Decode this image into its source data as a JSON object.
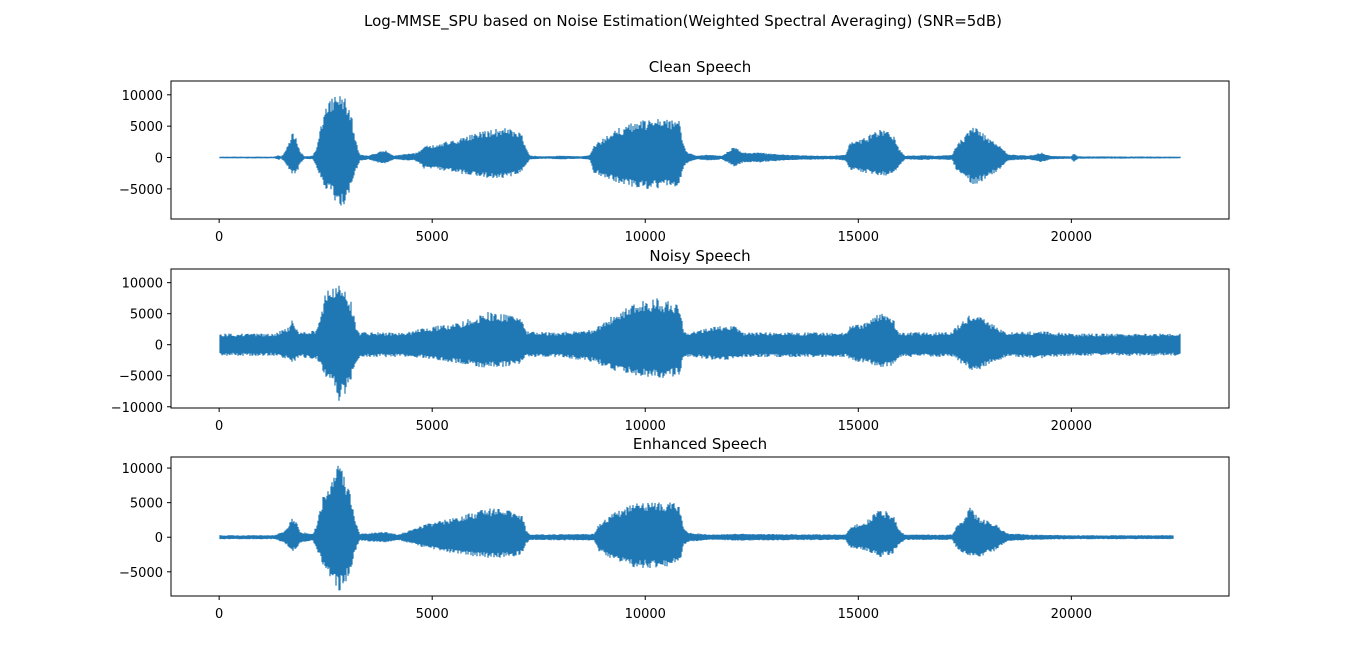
{
  "figure": {
    "suptitle": "Log-MMSE_SPU based on Noise Estimation(Weighted Spectral Averaging) (SNR=5dB)"
  },
  "colors": {
    "series": "#1f77b4",
    "axes": "#000000",
    "background": "#ffffff"
  },
  "chart_data": [
    {
      "type": "line",
      "title": "Clean Speech",
      "xlabel": "",
      "ylabel": "",
      "xlim": [
        -1130,
        23700
      ],
      "ylim": [
        -9800,
        12200
      ],
      "xticks": [
        0,
        5000,
        10000,
        15000,
        20000
      ],
      "yticks": [
        -5000,
        0,
        5000,
        10000
      ],
      "grid": false,
      "x_range": [
        0,
        22560
      ],
      "baseline_noise": 150,
      "envelope": [
        [
          0,
          150,
          -150
        ],
        [
          1300,
          150,
          -150
        ],
        [
          1400,
          400,
          -400
        ],
        [
          1450,
          150,
          -150
        ],
        [
          1500,
          500,
          -500
        ],
        [
          1650,
          2500,
          -2000
        ],
        [
          1700,
          4000,
          -2500
        ],
        [
          1800,
          3500,
          -3000
        ],
        [
          1900,
          1000,
          -1000
        ],
        [
          2000,
          200,
          -200
        ],
        [
          2200,
          300,
          -300
        ],
        [
          2300,
          2000,
          -2000
        ],
        [
          2400,
          5500,
          -3500
        ],
        [
          2500,
          8000,
          -5000
        ],
        [
          2700,
          10000,
          -6500
        ],
        [
          2800,
          11000,
          -8500
        ],
        [
          2950,
          9500,
          -7500
        ],
        [
          3100,
          7000,
          -5000
        ],
        [
          3200,
          3000,
          -2500
        ],
        [
          3300,
          500,
          -600
        ],
        [
          3500,
          300,
          -300
        ],
        [
          3700,
          800,
          -800
        ],
        [
          3900,
          1200,
          -1000
        ],
        [
          4100,
          300,
          -300
        ],
        [
          4400,
          600,
          -500
        ],
        [
          4600,
          700,
          -500
        ],
        [
          4750,
          1200,
          -1200
        ],
        [
          4800,
          2000,
          -1800
        ],
        [
          5000,
          2000,
          -1800
        ],
        [
          5600,
          3000,
          -2500
        ],
        [
          6300,
          4500,
          -3300
        ],
        [
          6800,
          4800,
          -3300
        ],
        [
          7100,
          4300,
          -2500
        ],
        [
          7200,
          1500,
          -1200
        ],
        [
          7300,
          300,
          -300
        ],
        [
          7700,
          200,
          -200
        ],
        [
          8000,
          300,
          -300
        ],
        [
          8500,
          200,
          -200
        ],
        [
          8700,
          400,
          -400
        ],
        [
          8800,
          2000,
          -2500
        ],
        [
          9300,
          4500,
          -4000
        ],
        [
          9800,
          5800,
          -5000
        ],
        [
          10300,
          6200,
          -5000
        ],
        [
          10800,
          6000,
          -4500
        ],
        [
          10900,
          2000,
          -1500
        ],
        [
          11000,
          800,
          -800
        ],
        [
          11200,
          300,
          -300
        ],
        [
          11500,
          500,
          -500
        ],
        [
          11800,
          300,
          -300
        ],
        [
          12100,
          1800,
          -1500
        ],
        [
          12300,
          800,
          -800
        ],
        [
          12700,
          800,
          -800
        ],
        [
          13000,
          600,
          -600
        ],
        [
          13500,
          400,
          -400
        ],
        [
          14400,
          300,
          -300
        ],
        [
          14700,
          500,
          -500
        ],
        [
          14800,
          2500,
          -2000
        ],
        [
          15200,
          3300,
          -2500
        ],
        [
          15500,
          4800,
          -3000
        ],
        [
          15800,
          4000,
          -2800
        ],
        [
          15950,
          1500,
          -1500
        ],
        [
          16100,
          300,
          -300
        ],
        [
          16500,
          400,
          -400
        ],
        [
          16800,
          300,
          -300
        ],
        [
          17200,
          400,
          -400
        ],
        [
          17300,
          2000,
          -2000
        ],
        [
          17500,
          3500,
          -3000
        ],
        [
          17700,
          5000,
          -4500
        ],
        [
          18000,
          3500,
          -3500
        ],
        [
          18200,
          2500,
          -2500
        ],
        [
          18400,
          1500,
          -1500
        ],
        [
          18500,
          500,
          -500
        ],
        [
          18800,
          400,
          -400
        ],
        [
          19000,
          300,
          -300
        ],
        [
          19300,
          800,
          -800
        ],
        [
          19500,
          300,
          -300
        ],
        [
          20000,
          200,
          -200
        ],
        [
          20050,
          800,
          -800
        ],
        [
          20150,
          200,
          -200
        ],
        [
          22560,
          150,
          -150
        ]
      ]
    },
    {
      "type": "line",
      "title": "Noisy Speech",
      "xlabel": "",
      "ylabel": "",
      "xlim": [
        -1130,
        23700
      ],
      "ylim": [
        -10200,
        12200
      ],
      "xticks": [
        0,
        5000,
        10000,
        15000,
        20000
      ],
      "yticks": [
        -10000,
        -5000,
        0,
        5000,
        10000
      ],
      "grid": false,
      "x_range": [
        0,
        22560
      ],
      "baseline_noise": 1600,
      "envelope": [
        [
          0,
          1800,
          -1800
        ],
        [
          1300,
          1800,
          -1800
        ],
        [
          1650,
          3000,
          -2500
        ],
        [
          1700,
          4200,
          -3000
        ],
        [
          1900,
          2000,
          -2000
        ],
        [
          2300,
          2500,
          -2500
        ],
        [
          2400,
          5500,
          -4000
        ],
        [
          2500,
          8500,
          -5500
        ],
        [
          2700,
          10000,
          -7000
        ],
        [
          2800,
          11300,
          -9200
        ],
        [
          2950,
          9500,
          -8000
        ],
        [
          3100,
          7000,
          -5500
        ],
        [
          3200,
          3500,
          -3000
        ],
        [
          3300,
          2000,
          -2000
        ],
        [
          4400,
          2000,
          -2000
        ],
        [
          4800,
          2800,
          -2200
        ],
        [
          5600,
          3500,
          -3000
        ],
        [
          6300,
          5300,
          -3800
        ],
        [
          6800,
          5000,
          -3500
        ],
        [
          7100,
          4300,
          -3000
        ],
        [
          7200,
          2200,
          -2000
        ],
        [
          8000,
          2000,
          -2000
        ],
        [
          8800,
          2500,
          -2800
        ],
        [
          9300,
          5000,
          -4500
        ],
        [
          9800,
          7000,
          -5000
        ],
        [
          10300,
          7500,
          -5500
        ],
        [
          10800,
          6500,
          -5000
        ],
        [
          10900,
          2500,
          -2300
        ],
        [
          11000,
          2000,
          -2000
        ],
        [
          11700,
          3000,
          -2500
        ],
        [
          12100,
          3300,
          -2500
        ],
        [
          12300,
          2000,
          -2000
        ],
        [
          14700,
          2000,
          -2000
        ],
        [
          14800,
          3000,
          -2500
        ],
        [
          15200,
          3800,
          -3000
        ],
        [
          15500,
          5200,
          -3800
        ],
        [
          15800,
          4500,
          -3500
        ],
        [
          15950,
          2000,
          -2000
        ],
        [
          17200,
          2000,
          -2000
        ],
        [
          17300,
          3000,
          -2500
        ],
        [
          17500,
          4500,
          -3500
        ],
        [
          17700,
          5000,
          -4500
        ],
        [
          18000,
          4000,
          -3500
        ],
        [
          18500,
          2000,
          -2000
        ],
        [
          19300,
          2200,
          -2200
        ],
        [
          20000,
          1800,
          -1800
        ],
        [
          22560,
          1800,
          -1800
        ]
      ]
    },
    {
      "type": "line",
      "title": "Enhanced Speech",
      "xlabel": "",
      "ylabel": "",
      "xlim": [
        -1130,
        23700
      ],
      "ylim": [
        -8500,
        11600
      ],
      "xticks": [
        0,
        5000,
        10000,
        15000,
        20000
      ],
      "yticks": [
        -5000,
        0,
        5000,
        10000
      ],
      "grid": false,
      "x_range": [
        0,
        22400
      ],
      "baseline_noise": 250,
      "envelope": [
        [
          0,
          300,
          -300
        ],
        [
          1300,
          300,
          -300
        ],
        [
          1500,
          800,
          -800
        ],
        [
          1650,
          2000,
          -1500
        ],
        [
          1700,
          2800,
          -2000
        ],
        [
          1800,
          2500,
          -2000
        ],
        [
          1900,
          800,
          -800
        ],
        [
          2200,
          500,
          -500
        ],
        [
          2300,
          2000,
          -2000
        ],
        [
          2400,
          5000,
          -3500
        ],
        [
          2500,
          7500,
          -5000
        ],
        [
          2700,
          9500,
          -6500
        ],
        [
          2800,
          10500,
          -8000
        ],
        [
          2950,
          9000,
          -7000
        ],
        [
          3100,
          6000,
          -4500
        ],
        [
          3200,
          2500,
          -2000
        ],
        [
          3300,
          500,
          -500
        ],
        [
          3900,
          800,
          -800
        ],
        [
          4200,
          400,
          -400
        ],
        [
          4800,
          1800,
          -1500
        ],
        [
          5600,
          3000,
          -2500
        ],
        [
          6300,
          4200,
          -3000
        ],
        [
          6800,
          4000,
          -3000
        ],
        [
          7100,
          3500,
          -2500
        ],
        [
          7200,
          1200,
          -1000
        ],
        [
          7300,
          400,
          -400
        ],
        [
          8800,
          500,
          -500
        ],
        [
          8900,
          1800,
          -2000
        ],
        [
          9300,
          3800,
          -3500
        ],
        [
          9800,
          5000,
          -4500
        ],
        [
          10300,
          5200,
          -4500
        ],
        [
          10800,
          5000,
          -4000
        ],
        [
          10900,
          1500,
          -1200
        ],
        [
          11000,
          700,
          -700
        ],
        [
          11500,
          400,
          -400
        ],
        [
          12100,
          500,
          -500
        ],
        [
          14700,
          400,
          -400
        ],
        [
          14800,
          1500,
          -1500
        ],
        [
          15200,
          2500,
          -2000
        ],
        [
          15500,
          4000,
          -3000
        ],
        [
          15800,
          3500,
          -2500
        ],
        [
          15950,
          1200,
          -1200
        ],
        [
          16100,
          400,
          -400
        ],
        [
          17200,
          400,
          -400
        ],
        [
          17300,
          1500,
          -1500
        ],
        [
          17500,
          3000,
          -2500
        ],
        [
          17600,
          4500,
          -2800
        ],
        [
          17800,
          3000,
          -3000
        ],
        [
          18200,
          2000,
          -2000
        ],
        [
          18500,
          600,
          -600
        ],
        [
          19000,
          400,
          -400
        ],
        [
          20000,
          300,
          -300
        ],
        [
          22400,
          300,
          -300
        ]
      ]
    }
  ]
}
